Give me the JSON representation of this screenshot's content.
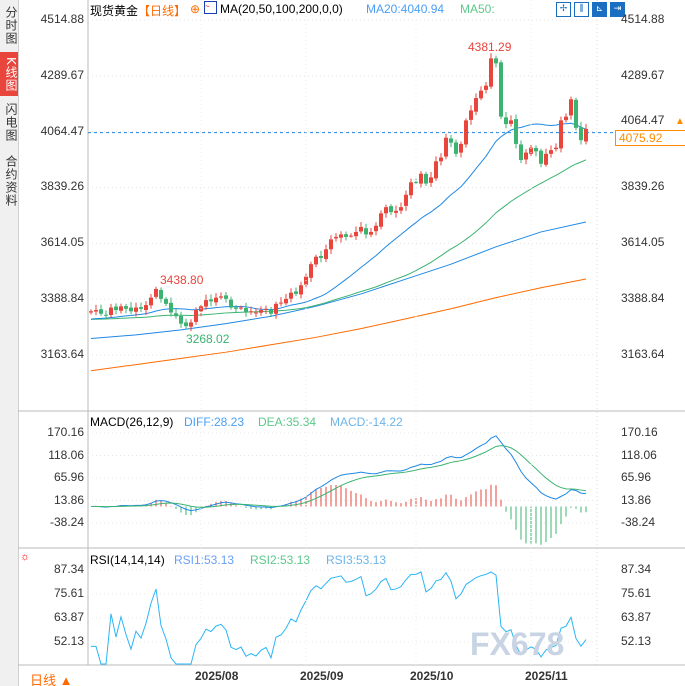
{
  "side_tabs": [
    "分时图",
    "K线图",
    "闪电图",
    "合约资料"
  ],
  "header": {
    "instrument": "现货黄金",
    "period": "【日线】",
    "ma_label": "MA(20,50,100,200,0,0)",
    "ma20": "MA20:4040.94",
    "ma50": "MA50:"
  },
  "toolbar": [
    "crosshair-icon",
    "bar-width-icon",
    "axis-icon",
    "forward-icon"
  ],
  "price_axis": [
    "4514.88",
    "4289.67",
    "4064.47",
    "3839.26",
    "3614.05",
    "3388.84",
    "3163.64"
  ],
  "current_price": "4075.92",
  "annotations": {
    "high": "4381.29",
    "local_high": "3438.80",
    "local_low": "3268.02"
  },
  "macd": {
    "label": "MACD(26,12,9)",
    "diff": "DIFF:28.23",
    "dea": "DEA:35.34",
    "macd": "MACD:-14.22",
    "axis": [
      "170.16",
      "118.06",
      "65.96",
      "13.86",
      "-38.24"
    ]
  },
  "rsi": {
    "label": "RSI(14,14,14)",
    "rsi1": "RSI1:53.13",
    "rsi2": "RSI2:53.13",
    "rsi3": "RSI3:53.13",
    "axis": [
      "87.34",
      "75.61",
      "63.87",
      "52.13"
    ]
  },
  "dates": [
    "2025/08",
    "2025/09",
    "2025/10",
    "2025/11"
  ],
  "period_button": "日线 ▲",
  "watermark": "FX678",
  "colors": {
    "up": "#e8453c",
    "down": "#3cb371",
    "ma20": "#1e88e5",
    "ma50": "#3cb371",
    "ma100": "#1e88e5",
    "ma200": "#ff6a00",
    "accent": "#ff8c00"
  },
  "chart_data": {
    "type": "candlestick",
    "closes": [
      3340,
      3345,
      3330,
      3325,
      3355,
      3345,
      3360,
      3350,
      3340,
      3355,
      3350,
      3365,
      3395,
      3430,
      3390,
      3370,
      3335,
      3320,
      3290,
      3280,
      3295,
      3345,
      3360,
      3385,
      3380,
      3395,
      3400,
      3390,
      3355,
      3350,
      3355,
      3335,
      3340,
      3335,
      3345,
      3350,
      3330,
      3370,
      3375,
      3390,
      3415,
      3410,
      3445,
      3480,
      3530,
      3560,
      3555,
      3590,
      3630,
      3640,
      3650,
      3640,
      3645,
      3660,
      3680,
      3650,
      3660,
      3685,
      3735,
      3760,
      3740,
      3745,
      3760,
      3810,
      3860,
      3860,
      3895,
      3855,
      3880,
      3945,
      3960,
      4040,
      4020,
      3975,
      4015,
      4110,
      4150,
      4200,
      4230,
      4250,
      4360,
      4340,
      4125,
      4095,
      4110,
      4015,
      3950,
      3980,
      4000,
      3985,
      3935,
      3975,
      3990,
      4000,
      4110,
      4125,
      4195,
      4080,
      4030,
      4075.92
    ],
    "ma100": [
      3230,
      3245,
      3265,
      3290,
      3320,
      3360,
      3410,
      3470,
      3530,
      3600,
      3660,
      3700
    ],
    "ma200": [
      3100,
      3125,
      3150,
      3175,
      3205,
      3235,
      3270,
      3310,
      3350,
      3395,
      3435,
      3470
    ],
    "ylim": [
      3163.64,
      4514.88
    ]
  }
}
